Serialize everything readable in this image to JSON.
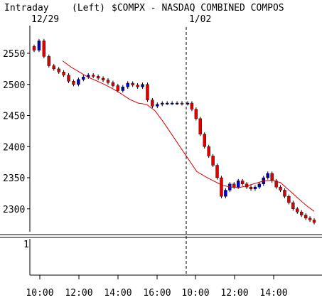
{
  "header": {
    "period": "Intraday",
    "scale_side": "(Left)",
    "symbol_title": "$COMPX - NASDAQ COMBINED COMPOS",
    "date_1": "12/29",
    "date_2": "1/02"
  },
  "colors": {
    "up_candle": "#0000cc",
    "down_candle": "#dd0000",
    "moving_average": "#dd0000",
    "background": "#ffffff",
    "axis": "#000000"
  },
  "chart_data": {
    "type": "candlestick",
    "title": "$COMPX - NASDAQ COMBINED COMPOS",
    "interval": "Intraday",
    "scale_side": "Left",
    "session_dates": [
      "12/29",
      "1/02"
    ],
    "y_ticks": [
      2550,
      2500,
      2450,
      2400,
      2350,
      2300
    ],
    "ylim": [
      2270,
      2590
    ],
    "x_tick_labels": [
      "10:00",
      "12:00",
      "14:00",
      "16:00",
      "10:00",
      "12:00",
      "14:00"
    ],
    "lower_panel": {
      "tick_label": "1"
    },
    "price_series": [
      2555,
      2570,
      2545,
      2530,
      2525,
      2520,
      2515,
      2505,
      2500,
      2508,
      2512,
      2515,
      2513,
      2510,
      2507,
      2503,
      2498,
      2490,
      2496,
      2502,
      2499,
      2496,
      2500,
      2475,
      2465,
      2468,
      2470,
      2470,
      2470,
      2470,
      2469,
      2470,
      2460,
      2445,
      2420,
      2400,
      2385,
      2370,
      2350,
      2320,
      2330,
      2340,
      2335,
      2345,
      2340,
      2335,
      2332,
      2335,
      2340,
      2350,
      2357,
      2345,
      2335,
      2330,
      2320,
      2310,
      2300,
      2295,
      2290,
      2285,
      2282,
      2278
    ],
    "moving_average_series": [
      2538,
      2528,
      2520,
      2512,
      2506,
      2500,
      2493,
      2485,
      2476,
      2470,
      2468,
      2458,
      2440,
      2420,
      2400,
      2380,
      2360,
      2352,
      2345,
      2338,
      2335,
      2334,
      2337,
      2341,
      2345,
      2346,
      2342,
      2330,
      2318,
      2306,
      2296
    ]
  }
}
